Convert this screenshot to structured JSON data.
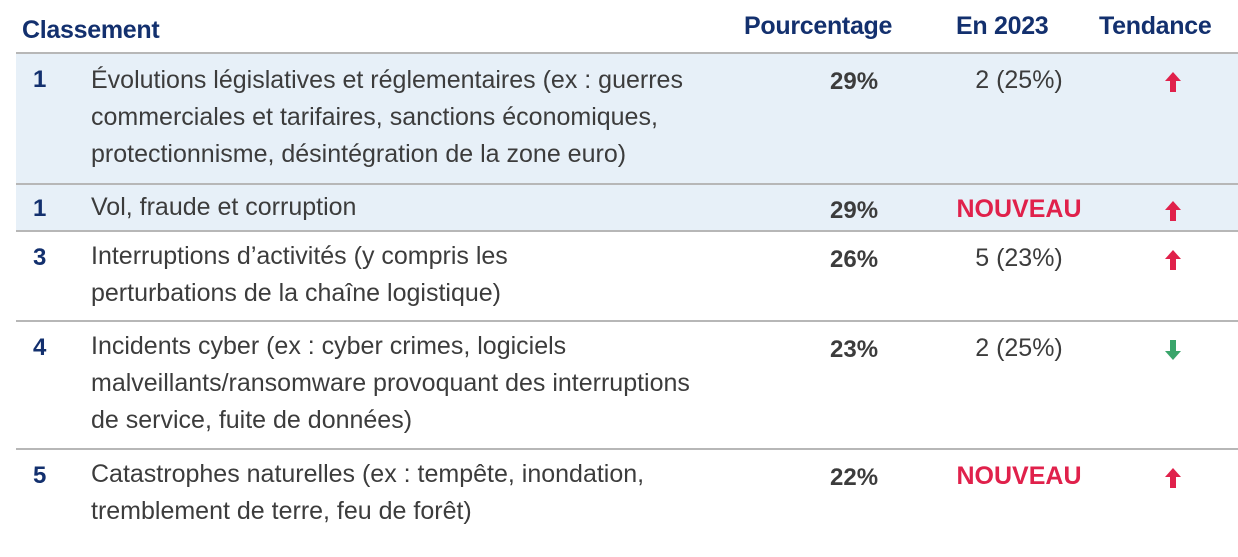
{
  "header": {
    "rank_label": "Classement",
    "percentage_label": "Pourcentage",
    "year_label": "En 2023",
    "trend_label": "Tendance"
  },
  "colors": {
    "header_text": "#13306e",
    "new_text": "#e0214b",
    "up_arrow": "#e0214b",
    "down_arrow": "#3aa56b",
    "shaded_row": "#e7f0f8"
  },
  "rows": [
    {
      "rank": "1",
      "description": "Évolutions législatives et réglementaires (ex : guerres commerciales et tarifaires, sanctions économiques, protectionnisme, désintégration de la zone euro)",
      "percentage": "29%",
      "previous": "2 (25%)",
      "trend": "up-arrow-icon"
    },
    {
      "rank": "1",
      "description": "Vol, fraude et corruption",
      "percentage": "29%",
      "previous": "NOUVEAU",
      "trend": "up-arrow-icon"
    },
    {
      "rank": "3",
      "description": "Interruptions d’activités (y compris les perturbations de la chaîne logistique)",
      "percentage": "26%",
      "previous": "5 (23%)",
      "trend": "up-arrow-icon"
    },
    {
      "rank": "4",
      "description": "Incidents cyber (ex : cyber crimes, logiciels malveillants/ransomware provoquant des interruptions de service, fuite de données)",
      "percentage": "23%",
      "previous": "2 (25%)",
      "trend": "down-arrow-icon"
    },
    {
      "rank": "5",
      "description": "Catastrophes naturelles (ex : tempête, inondation, tremblement de terre, feu de forêt)",
      "percentage": "22%",
      "previous": "NOUVEAU",
      "trend": "up-arrow-icon"
    }
  ]
}
